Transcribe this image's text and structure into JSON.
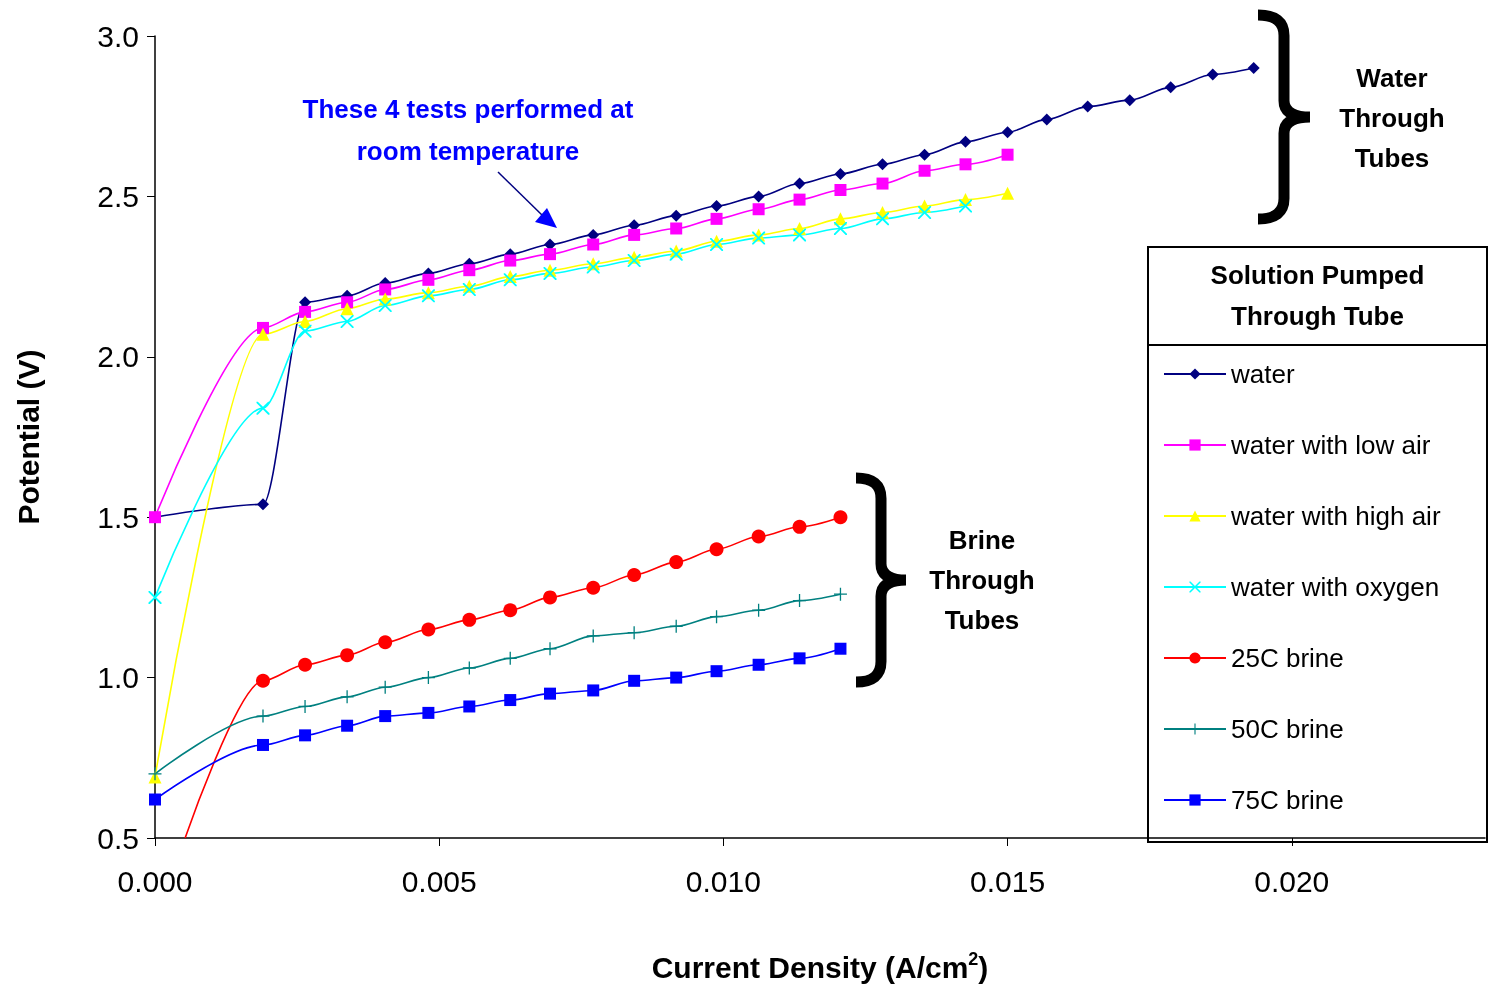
{
  "chart_data": {
    "type": "line",
    "xlabel": "Current Density (A/cm$^{2}$)",
    "ylabel": "Potential (V)",
    "legend_title": "Solution Pumped Through Tube",
    "legend": "right",
    "grid": false,
    "xlim": [
      0,
      0.0234
    ],
    "ylim": [
      0.5,
      3.0
    ],
    "xticks": [
      {
        "value": 0,
        "label": "0.000"
      },
      {
        "value": 0.005,
        "label": "0.005"
      },
      {
        "value": 0.01,
        "label": "0.010"
      },
      {
        "value": 0.015,
        "label": "0.015"
      },
      {
        "value": 0.02,
        "label": "0.020"
      }
    ],
    "yticks": [
      {
        "value": 0.5,
        "label": "0.5"
      },
      {
        "value": 1,
        "label": "1.0"
      },
      {
        "value": 1.5,
        "label": "1.5"
      },
      {
        "value": 2,
        "label": "2.0"
      },
      {
        "value": 2.5,
        "label": "2.5"
      },
      {
        "value": 3,
        "label": "3.0"
      }
    ],
    "annotations": [
      "These 4 tests performed at room temperature",
      "Water Through Tubes",
      "Brine Through Tubes"
    ],
    "series": [
      {
        "name": "water",
        "color": "#000080",
        "marker": "diamond",
        "x": [
          0,
          0.0019,
          0.00264,
          0.00338,
          0.00405,
          0.00481,
          0.00553,
          0.00625,
          0.00695,
          0.00771,
          0.00843,
          0.00917,
          0.00988,
          0.01062,
          0.01134,
          0.01206,
          0.0128,
          0.01354,
          0.01426,
          0.015,
          0.01569,
          0.01641,
          0.01715,
          0.01787,
          0.01861,
          0.01933
        ],
        "values": [
          1.5,
          1.54,
          2.17,
          2.19,
          2.23,
          2.26,
          2.29,
          2.32,
          2.35,
          2.38,
          2.41,
          2.44,
          2.47,
          2.5,
          2.54,
          2.57,
          2.6,
          2.63,
          2.67,
          2.7,
          2.74,
          2.78,
          2.8,
          2.84,
          2.88,
          2.9
        ]
      },
      {
        "name": "water with low air",
        "color": "#ff00ff",
        "marker": "square",
        "x": [
          0,
          0.0019,
          0.00264,
          0.00338,
          0.00405,
          0.00481,
          0.00553,
          0.00625,
          0.00695,
          0.00771,
          0.00843,
          0.00917,
          0.00988,
          0.01062,
          0.01134,
          0.01206,
          0.0128,
          0.01354,
          0.01426,
          0.015
        ],
        "values": [
          1.5,
          2.09,
          2.14,
          2.17,
          2.21,
          2.24,
          2.27,
          2.3,
          2.32,
          2.35,
          2.38,
          2.4,
          2.43,
          2.46,
          2.49,
          2.52,
          2.54,
          2.58,
          2.6,
          2.63
        ]
      },
      {
        "name": "water with high air",
        "color": "#ffff00",
        "marker": "triangle",
        "x": [
          0,
          0.0019,
          0.00264,
          0.00338,
          0.00405,
          0.00481,
          0.00553,
          0.00625,
          0.00695,
          0.00771,
          0.00843,
          0.00917,
          0.00988,
          0.01062,
          0.01134,
          0.01206,
          0.0128,
          0.01354,
          0.01426,
          0.015
        ],
        "values": [
          0.69,
          2.07,
          2.11,
          2.15,
          2.18,
          2.2,
          2.22,
          2.25,
          2.27,
          2.29,
          2.31,
          2.33,
          2.36,
          2.38,
          2.4,
          2.43,
          2.45,
          2.47,
          2.49,
          2.51
        ]
      },
      {
        "name": "water with oxygen",
        "color": "#00ffff",
        "marker": "cross",
        "x": [
          0,
          0.0019,
          0.00264,
          0.00338,
          0.00405,
          0.00481,
          0.00553,
          0.00625,
          0.00695,
          0.00771,
          0.00843,
          0.00917,
          0.00988,
          0.01062,
          0.01134,
          0.01206,
          0.0128,
          0.01354,
          0.01426
        ],
        "values": [
          1.25,
          1.84,
          2.08,
          2.11,
          2.16,
          2.19,
          2.21,
          2.24,
          2.26,
          2.28,
          2.3,
          2.32,
          2.35,
          2.37,
          2.38,
          2.4,
          2.43,
          2.45,
          2.47
        ]
      },
      {
        "name": "25C brine",
        "color": "#ff0000",
        "marker": "circle",
        "x": [
          0.00053,
          0.0019,
          0.00264,
          0.00338,
          0.00405,
          0.00481,
          0.00553,
          0.00625,
          0.00695,
          0.00771,
          0.00843,
          0.00917,
          0.00988,
          0.01062,
          0.01134,
          0.01206
        ],
        "values": [
          0.5,
          0.99,
          1.04,
          1.07,
          1.11,
          1.15,
          1.18,
          1.21,
          1.25,
          1.28,
          1.32,
          1.36,
          1.4,
          1.44,
          1.47,
          1.5
        ]
      },
      {
        "name": "50C brine",
        "color": "#008080",
        "marker": "plus",
        "x": [
          0,
          0.0019,
          0.00264,
          0.00338,
          0.00405,
          0.00481,
          0.00553,
          0.00625,
          0.00695,
          0.00771,
          0.00843,
          0.00917,
          0.00988,
          0.01062,
          0.01134,
          0.01206
        ],
        "values": [
          0.7,
          0.88,
          0.91,
          0.94,
          0.97,
          1.0,
          1.03,
          1.06,
          1.09,
          1.13,
          1.14,
          1.16,
          1.19,
          1.21,
          1.24,
          1.26
        ]
      },
      {
        "name": "75C brine",
        "color": "#0000ff",
        "marker": "square",
        "x": [
          0,
          0.0019,
          0.00264,
          0.00338,
          0.00405,
          0.00481,
          0.00553,
          0.00625,
          0.00695,
          0.00771,
          0.00843,
          0.00917,
          0.00988,
          0.01062,
          0.01134,
          0.01206
        ],
        "values": [
          0.62,
          0.79,
          0.82,
          0.85,
          0.88,
          0.89,
          0.91,
          0.93,
          0.95,
          0.96,
          0.99,
          1.0,
          1.02,
          1.04,
          1.06,
          1.09
        ]
      }
    ]
  }
}
